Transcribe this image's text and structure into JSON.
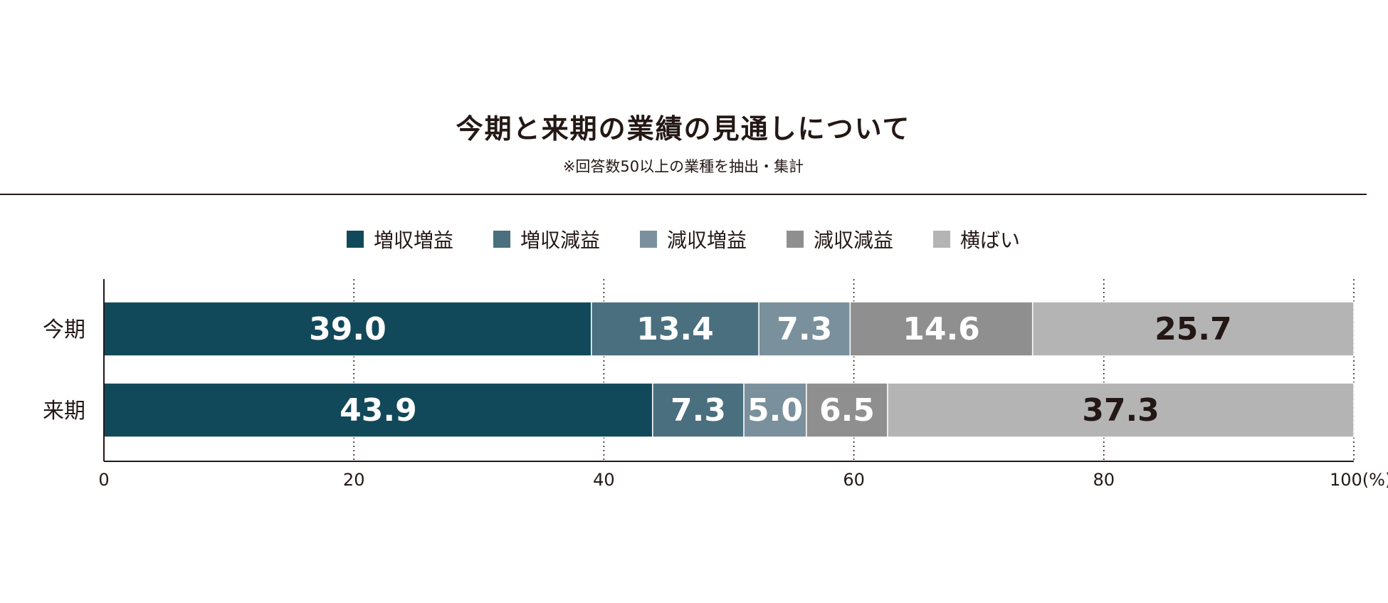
{
  "chart_data": {
    "type": "bar",
    "orientation": "horizontal",
    "stacked": true,
    "title": "今期と来期の業績の見通しについて",
    "subtitle": "※回答数50以上の業種を抽出・集計",
    "categories": [
      "今期",
      "来期"
    ],
    "series": [
      {
        "name": "増収増益",
        "color": "#12495a",
        "label_color": "#ffffff",
        "values": [
          39.0,
          43.9
        ]
      },
      {
        "name": "増収減益",
        "color": "#4a6f7f",
        "label_color": "#ffffff",
        "values": [
          13.4,
          7.3
        ]
      },
      {
        "name": "減収増益",
        "color": "#7a909c",
        "label_color": "#ffffff",
        "values": [
          7.3,
          5.0
        ]
      },
      {
        "name": "減収減益",
        "color": "#8f8f8f",
        "label_color": "#ffffff",
        "values": [
          14.6,
          6.5
        ]
      },
      {
        "name": "横ばい",
        "color": "#b4b4b4",
        "label_color": "#231815",
        "values": [
          25.7,
          37.3
        ]
      }
    ],
    "x_ticks": [
      "0",
      "20",
      "40",
      "60",
      "80",
      "100(%)"
    ],
    "xlim": [
      0,
      100
    ],
    "grid": "vertical dotted",
    "legend_position": "top"
  }
}
